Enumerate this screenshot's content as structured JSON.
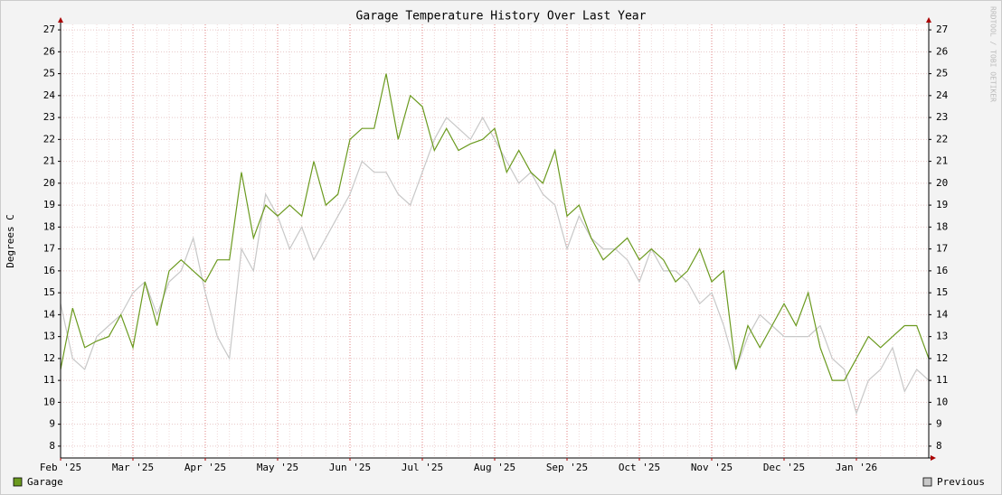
{
  "chart_data": {
    "type": "line",
    "title": "Garage Temperature History Over Last Year",
    "y_label": "Degrees C",
    "watermark": "RRDTOOL / TOBI OETIKER",
    "categories": [
      "Feb '25",
      null,
      null,
      null,
      null,
      null,
      "Mar '25",
      null,
      null,
      null,
      null,
      null,
      "Apr '25",
      null,
      null,
      null,
      null,
      null,
      "May '25",
      null,
      null,
      null,
      null,
      null,
      "Jun '25",
      null,
      null,
      null,
      null,
      null,
      "Jul '25",
      null,
      null,
      null,
      null,
      null,
      "Aug '25",
      null,
      null,
      null,
      null,
      null,
      "Sep '25",
      null,
      null,
      null,
      null,
      null,
      "Oct '25",
      null,
      null,
      null,
      null,
      null,
      "Nov '25",
      null,
      null,
      null,
      null,
      null,
      "Dec '25",
      null,
      null,
      null,
      null,
      null,
      "Jan '26",
      null,
      null,
      null,
      null,
      null,
      null
    ],
    "series": [
      {
        "name": "Garage",
        "color": "#6b9a1f",
        "values": [
          11.5,
          14.3,
          12.5,
          12.8,
          13.0,
          14.0,
          12.5,
          15.5,
          13.5,
          16.0,
          16.5,
          16.0,
          15.5,
          16.5,
          16.5,
          20.5,
          17.5,
          19.0,
          18.5,
          19.0,
          18.5,
          21.0,
          19.0,
          19.5,
          22.0,
          22.5,
          22.5,
          25.0,
          22.0,
          24.0,
          23.5,
          21.5,
          22.5,
          21.5,
          21.8,
          22.0,
          22.5,
          20.5,
          21.5,
          20.5,
          20.0,
          21.5,
          18.5,
          19.0,
          17.5,
          16.5,
          17.0,
          17.5,
          16.5,
          17.0,
          16.5,
          15.5,
          16.0,
          17.0,
          15.5,
          16.0,
          11.5,
          13.5,
          12.5,
          13.5,
          14.5,
          13.5,
          15.0,
          12.5,
          11.0,
          11.0,
          12.0,
          13.0,
          12.5,
          13.0,
          13.5,
          13.5,
          12.0
        ]
      },
      {
        "name": "Previous",
        "color": "#c8c8c8",
        "values": [
          14.5,
          12,
          11.5,
          13,
          13.5,
          14,
          15,
          15.5,
          14,
          15.5,
          16,
          17.5,
          15,
          13,
          12,
          17,
          16,
          19.5,
          18.5,
          17,
          18,
          16.5,
          17.5,
          18.5,
          19.5,
          21,
          20.5,
          20.5,
          19.5,
          19,
          20.5,
          22,
          23,
          22.5,
          22,
          23,
          22,
          21,
          20,
          20.5,
          19.5,
          19,
          17,
          18.5,
          17.5,
          17,
          17,
          16.5,
          15.5,
          17,
          16,
          16,
          15.5,
          14.5,
          15,
          13.5,
          11.5,
          13,
          14,
          13.5,
          13,
          13,
          13,
          13.5,
          12,
          11.5,
          9.5,
          11,
          11.5,
          12.5,
          10.5,
          11.5,
          11
        ]
      }
    ],
    "ylim": [
      7.46,
      27.25
    ],
    "yticks": [
      8,
      9,
      10,
      11,
      12,
      13,
      14,
      15,
      16,
      17,
      18,
      19,
      20,
      21,
      22,
      23,
      24,
      25,
      26,
      27
    ],
    "grid": true
  }
}
